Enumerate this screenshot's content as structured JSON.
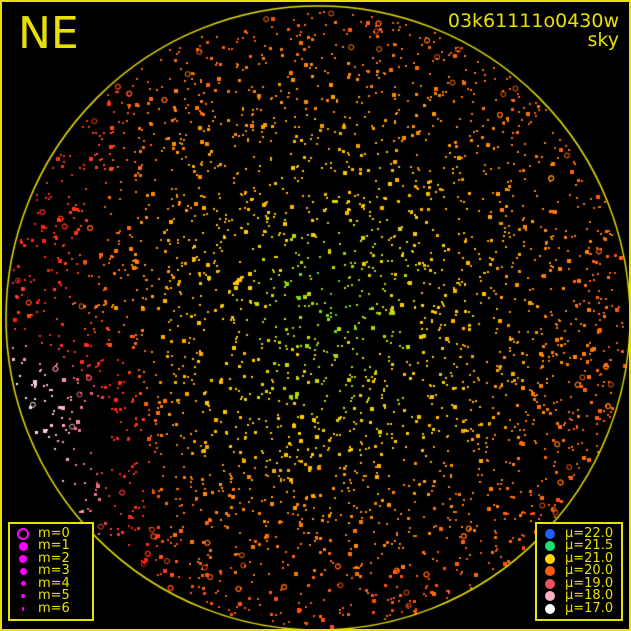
{
  "header": {
    "orientation": "NE",
    "image_id": "03k61111o0430w",
    "mode": "sky"
  },
  "magnitude_legend": [
    {
      "label": "m=0"
    },
    {
      "label": "m=1"
    },
    {
      "label": "m=2"
    },
    {
      "label": "m=3"
    },
    {
      "label": "m=4"
    },
    {
      "label": "m=5"
    },
    {
      "label": "m=6"
    }
  ],
  "brightness_legend": [
    {
      "label": "μ=22.0",
      "color": "#1e5fff"
    },
    {
      "label": "μ=21.5",
      "color": "#19e070"
    },
    {
      "label": "μ=21.0",
      "color": "#ffd800"
    },
    {
      "label": "μ=20.0",
      "color": "#ff5a10"
    },
    {
      "label": "μ=19.0",
      "color": "#f05060"
    },
    {
      "label": "μ=18.0",
      "color": "#ffb0c0"
    },
    {
      "label": "μ=17.0",
      "color": "#ffffff"
    }
  ],
  "colors": {
    "frame": "#e8e000",
    "magnitude_symbol": "#ff00ff"
  }
}
